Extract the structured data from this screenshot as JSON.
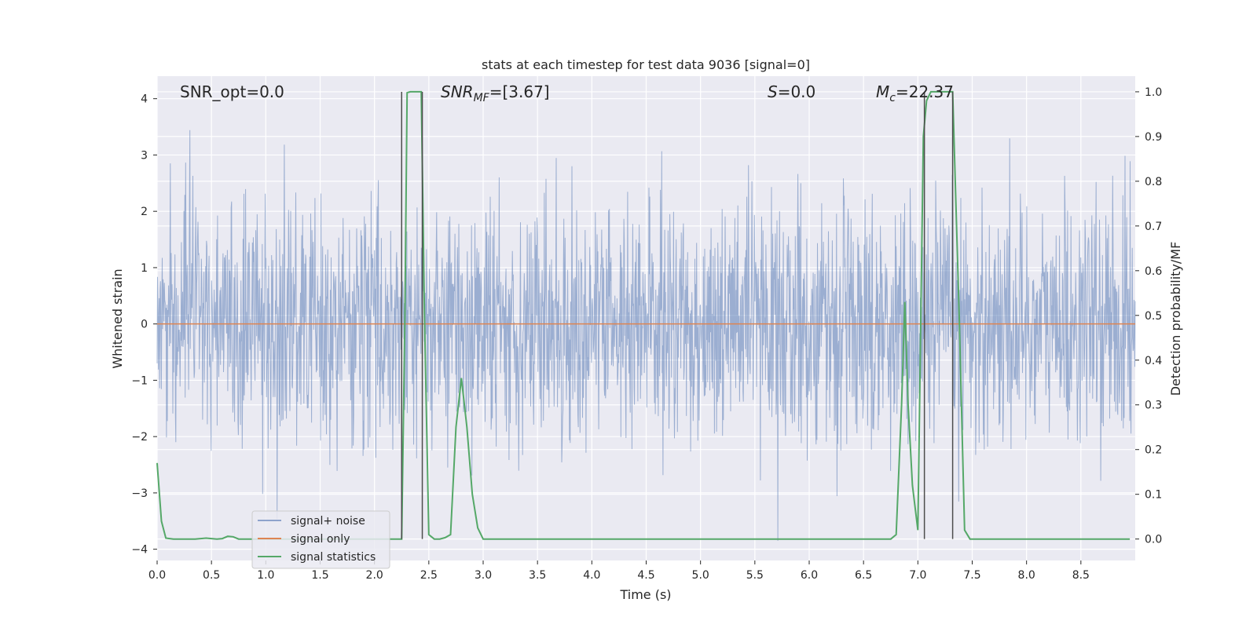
{
  "chart_data": {
    "type": "line",
    "title": "stats at each timestep for test data 9036 [signal=0]",
    "xlabel": "Time (s)",
    "ylabel": "Whitened strain",
    "y2label": "Detection probability/MF",
    "xlim": [
      0,
      9.0
    ],
    "ylim": [
      -4.2,
      4.4
    ],
    "y2lim": [
      -0.048,
      1.035
    ],
    "x_ticks": [
      "0.0",
      "0.5",
      "1.0",
      "1.5",
      "2.0",
      "2.5",
      "3.0",
      "3.5",
      "4.0",
      "4.5",
      "5.0",
      "5.5",
      "6.0",
      "6.5",
      "7.0",
      "7.5",
      "8.0",
      "8.5"
    ],
    "y_ticks": [
      "4",
      "3",
      "2",
      "1",
      "0",
      "−1",
      "−2",
      "−3",
      "−4"
    ],
    "y2_ticks": [
      "1.0",
      "0.9",
      "0.8",
      "0.7",
      "0.6",
      "0.5",
      "0.4",
      "0.3",
      "0.2",
      "0.1",
      "0.0"
    ],
    "grid": true,
    "legend_placement": "lower-left",
    "annotations": {
      "snr_opt": "SNR_opt=0.0",
      "snr_mf_main": "SNR",
      "snr_mf_sub": "MF",
      "snr_mf_rest": "=[3.67]",
      "s_main": "S",
      "s_rest": "=0.0",
      "mc_main": "M",
      "mc_sub": "c",
      "mc_rest": "=22.37"
    },
    "series": [
      {
        "name": "signal+ noise",
        "color": "#4c72b0",
        "note_values": "dense gaussian noise, range approx -3.8 to 4.0"
      },
      {
        "name": "signal only",
        "color": "#dd8452",
        "values_constant": 0.0
      },
      {
        "name": "signal statistics",
        "color": "#55a868",
        "axis": "right",
        "x": [
          0.0,
          0.04,
          0.08,
          0.15,
          0.25,
          0.35,
          0.45,
          0.5,
          0.55,
          0.6,
          0.65,
          0.7,
          0.75,
          0.8,
          0.9,
          1.0,
          1.1,
          1.2,
          1.3,
          1.5,
          1.7,
          1.9,
          2.0,
          2.1,
          2.2,
          2.25,
          2.28,
          2.3,
          2.33,
          2.38,
          2.43,
          2.46,
          2.5,
          2.55,
          2.6,
          2.65,
          2.7,
          2.75,
          2.8,
          2.85,
          2.9,
          2.95,
          3.0,
          3.05,
          3.2,
          3.5,
          4.0,
          4.5,
          5.0,
          5.5,
          6.0,
          6.5,
          6.75,
          6.8,
          6.85,
          6.88,
          6.91,
          6.95,
          7.0,
          7.05,
          7.08,
          7.12,
          7.18,
          7.25,
          7.32,
          7.38,
          7.43,
          7.48,
          7.55,
          7.7,
          8.0,
          8.5,
          8.95
        ],
        "values": [
          0.17,
          0.04,
          0.002,
          0.0,
          0.0,
          0.0,
          0.002,
          0.001,
          0.0,
          0.001,
          0.006,
          0.005,
          0.0,
          0.0,
          0.0,
          0.0,
          0.0,
          0.0,
          0.0,
          0.0,
          0.0,
          0.0,
          0.0,
          0.0,
          0.0,
          0.0,
          0.5,
          0.998,
          1.0,
          1.0,
          1.0,
          0.5,
          0.01,
          0.0,
          0.0,
          0.003,
          0.01,
          0.25,
          0.36,
          0.25,
          0.1,
          0.025,
          0.0,
          0.0,
          0.0,
          0.0,
          0.0,
          0.0,
          0.0,
          0.0,
          0.0,
          0.0,
          0.0,
          0.01,
          0.3,
          0.53,
          0.3,
          0.12,
          0.02,
          0.9,
          0.98,
          1.0,
          1.0,
          1.0,
          1.0,
          0.5,
          0.02,
          0.0,
          0.0,
          0.0,
          0.0,
          0.0,
          0.0
        ]
      }
    ],
    "vlines_x": [
      2.25,
      2.44,
      7.06,
      7.32
    ]
  }
}
